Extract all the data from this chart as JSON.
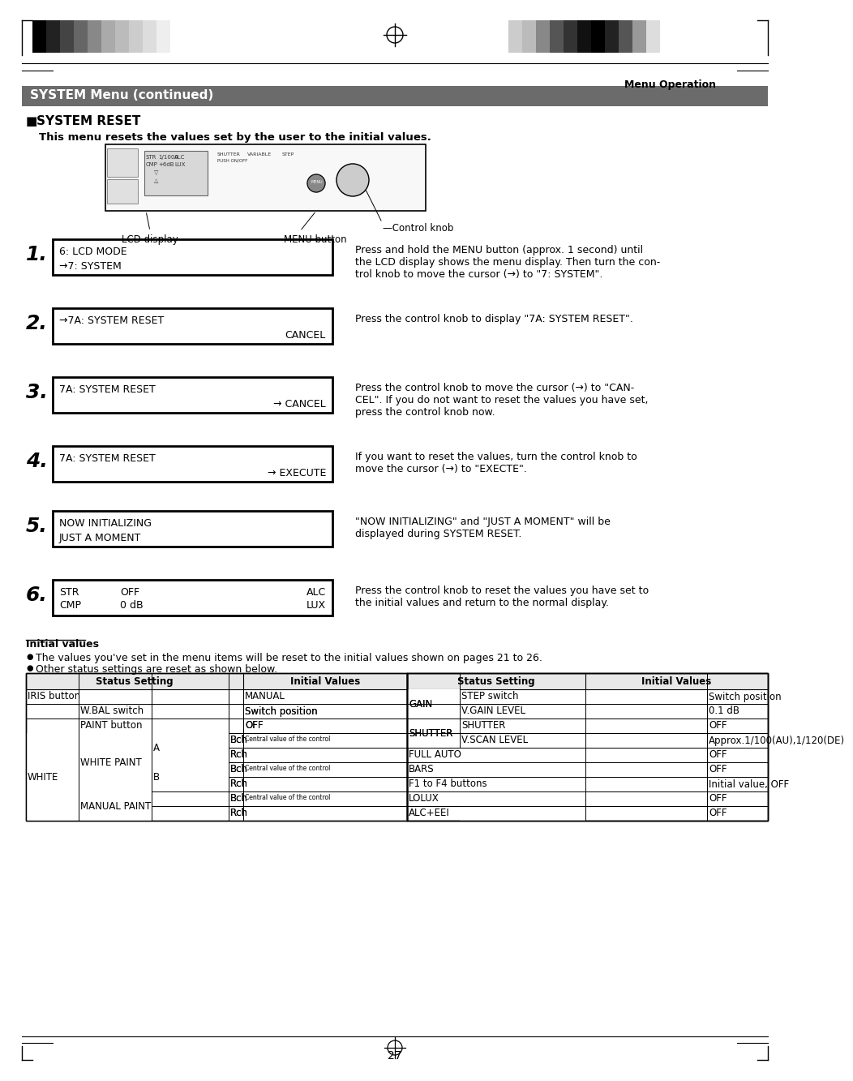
{
  "title_bar_text": "SYSTEM Menu (continued)",
  "title_bar_bg": "#6b6b6b",
  "title_bar_text_color": "#ffffff",
  "section_title": "SYSTEM RESET",
  "intro_text": "This menu resets the values set by the user to the initial values.",
  "label_lcd": "LCD display",
  "label_menu": "MENU button",
  "label_control": "Control knob",
  "menu_operation_label": "Menu Operation",
  "steps": [
    {
      "num": "1.",
      "box_line1": "6: LCD MODE",
      "box_line2": "→7: SYSTEM",
      "desc": "Press and hold the MENU button (approx. 1 second) until\nthe LCD display shows the menu display. Then turn the con-\ntrol knob to move the cursor (→) to \"7: SYSTEM\"."
    },
    {
      "num": "2.",
      "box_line1": "→7A: SYSTEM RESET",
      "box_line2": "CANCEL",
      "box_line2_align": "right",
      "desc": "Press the control knob to display \"7A: SYSTEM RESET\"."
    },
    {
      "num": "3.",
      "box_line1": "7A: SYSTEM RESET",
      "box_line2": "→ CANCEL",
      "box_line2_align": "right",
      "desc": "Press the control knob to move the cursor (→) to \"CAN-\nCEL\". If you do not want to reset the values you have set,\npress the control knob now."
    },
    {
      "num": "4.",
      "box_line1": "7A: SYSTEM RESET",
      "box_line2": "→ EXECUTE",
      "box_line2_align": "right",
      "desc": "If you want to reset the values, turn the control knob to\nmove the cursor (→) to \"EXECTE\"."
    },
    {
      "num": "5.",
      "box_line1": "NOW INITIALIZING",
      "box_line2": "JUST A MOMENT",
      "box_line2_align": "left",
      "desc": "\"NOW INITIALIZING\" and \"JUST A MOMENT\" will be\ndisplayed during SYSTEM RESET."
    },
    {
      "num": "6.",
      "lcd_rows": [
        [
          "STR",
          "OFF",
          "ALC"
        ],
        [
          "CMP",
          "0 dB",
          "LUX"
        ]
      ],
      "desc": "Press the control knob to reset the values you have set to\nthe initial values and return to the normal display."
    }
  ],
  "initial_values_title": "Initial values",
  "bullet1": "The values you've set in the menu items will be reset to the initial values shown on pages 21 to 26.",
  "bullet2": "Other status settings are reset as shown below.",
  "colors_left": [
    "#000000",
    "#222222",
    "#444444",
    "#666666",
    "#888888",
    "#aaaaaa",
    "#bbbbbb",
    "#cccccc",
    "#dddddd",
    "#eeeeee",
    "#ffffff"
  ],
  "colors_right": [
    "#cccccc",
    "#bbbbbb",
    "#888888",
    "#555555",
    "#333333",
    "#111111",
    "#000000",
    "#222222",
    "#555555",
    "#999999",
    "#dddddd"
  ],
  "table_right_rows": [
    {
      "group": "GAIN",
      "setting": "STEP switch",
      "value": "Switch position",
      "group_row": 0,
      "group_span": 2
    },
    {
      "group": "",
      "setting": "V.GAIN LEVEL",
      "value": "0.1 dB",
      "group_row": 1,
      "group_span": 2
    },
    {
      "group": "SHUTTER",
      "setting": "SHUTTER",
      "value": "OFF",
      "group_row": 0,
      "group_span": 2
    },
    {
      "group": "",
      "setting": "V.SCAN LEVEL",
      "value": "Approx.1/100(AU),1/120(DE)",
      "group_row": 1,
      "group_span": 2
    },
    {
      "group": "FULL AUTO",
      "setting": "",
      "value": "OFF",
      "group_row": 0,
      "group_span": 1
    },
    {
      "group": "BARS",
      "setting": "",
      "value": "OFF",
      "group_row": 0,
      "group_span": 1
    },
    {
      "group": "F1 to F4 buttons",
      "setting": "",
      "value": "Initial value, OFF",
      "group_row": 0,
      "group_span": 1
    },
    {
      "group": "LOLUX",
      "setting": "",
      "value": "OFF",
      "group_row": 0,
      "group_span": 1
    },
    {
      "group": "ALC+EEI",
      "setting": "",
      "value": "OFF",
      "group_row": 0,
      "group_span": 1
    }
  ],
  "page_number": "27",
  "bg_color": "#ffffff"
}
